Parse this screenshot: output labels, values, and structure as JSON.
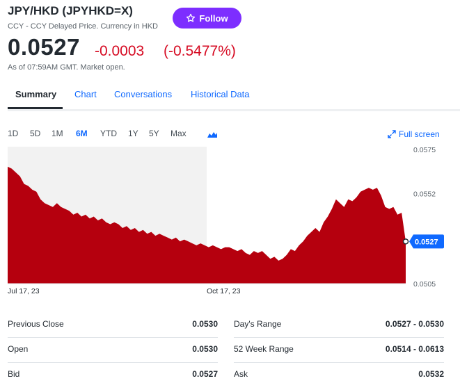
{
  "header": {
    "title": "JPY/HKD (JPYHKD=X)",
    "subtitle": "CCY - CCY Delayed Price. Currency in HKD",
    "follow_label": "Follow",
    "price": "0.0527",
    "change": "-0.0003",
    "change_pct": "(-0.5477%)",
    "as_of": "As of 07:59AM GMT. Market open."
  },
  "tabs": [
    {
      "label": "Summary",
      "active": true
    },
    {
      "label": "Chart"
    },
    {
      "label": "Conversations"
    },
    {
      "label": "Historical Data"
    }
  ],
  "ranges": [
    {
      "label": "1D"
    },
    {
      "label": "5D"
    },
    {
      "label": "1M"
    },
    {
      "label": "6M",
      "active": true
    },
    {
      "label": "YTD"
    },
    {
      "label": "1Y"
    },
    {
      "label": "5Y"
    },
    {
      "label": "Max"
    }
  ],
  "chart_type_icon": "mountain-chart-icon",
  "fullscreen_label": "Full screen",
  "colors": {
    "accent": "#0f69ff",
    "follow": "#7d2eff",
    "negative": "#d60a22",
    "area_fill": "#b5000e",
    "shade": "#f2f2f2"
  },
  "chart_data": {
    "type": "area",
    "y_ticks": [
      "0.0575",
      "0.0552",
      "0.0505"
    ],
    "x_tick_labels": [
      "Jul 17, 23",
      "Oct 17, 23"
    ],
    "current_label": "0.0527",
    "ylim": [
      0.0505,
      0.0575
    ],
    "highlight_range": [
      "Jul 17, 23",
      "Oct 17, 23"
    ],
    "values": [
      0.0566,
      0.0565,
      0.0563,
      0.0561,
      0.0557,
      0.0556,
      0.0554,
      0.0553,
      0.0549,
      0.0547,
      0.0546,
      0.0545,
      0.0547,
      0.0545,
      0.0544,
      0.0543,
      0.0541,
      0.0542,
      0.054,
      0.0541,
      0.0539,
      0.054,
      0.0538,
      0.0539,
      0.0537,
      0.0536,
      0.0537,
      0.0536,
      0.0534,
      0.0535,
      0.0533,
      0.0534,
      0.0532,
      0.0533,
      0.0531,
      0.0532,
      0.053,
      0.0531,
      0.053,
      0.0529,
      0.0528,
      0.0529,
      0.0527,
      0.0528,
      0.0527,
      0.0526,
      0.0525,
      0.0526,
      0.0525,
      0.0524,
      0.0525,
      0.0524,
      0.0523,
      0.0524,
      0.0524,
      0.0523,
      0.0522,
      0.0523,
      0.0521,
      0.052,
      0.0522,
      0.0521,
      0.0522,
      0.052,
      0.0518,
      0.0519,
      0.0517,
      0.0518,
      0.052,
      0.0523,
      0.0522,
      0.0525,
      0.0527,
      0.053,
      0.0532,
      0.0534,
      0.0532,
      0.0537,
      0.054,
      0.0544,
      0.0549,
      0.0547,
      0.0545,
      0.0549,
      0.0548,
      0.055,
      0.0553,
      0.0554,
      0.0555,
      0.0554,
      0.0555,
      0.0551,
      0.0545,
      0.0544,
      0.0545,
      0.0541,
      0.0542,
      0.0527
    ]
  },
  "stats": [
    {
      "label": "Previous Close",
      "value": "0.0530"
    },
    {
      "label": "Day's Range",
      "value": "0.0527 - 0.0530"
    },
    {
      "label": "Open",
      "value": "0.0530"
    },
    {
      "label": "52 Week Range",
      "value": "0.0514 - 0.0613"
    },
    {
      "label": "Bid",
      "value": "0.0527"
    },
    {
      "label": "Ask",
      "value": "0.0532"
    }
  ]
}
